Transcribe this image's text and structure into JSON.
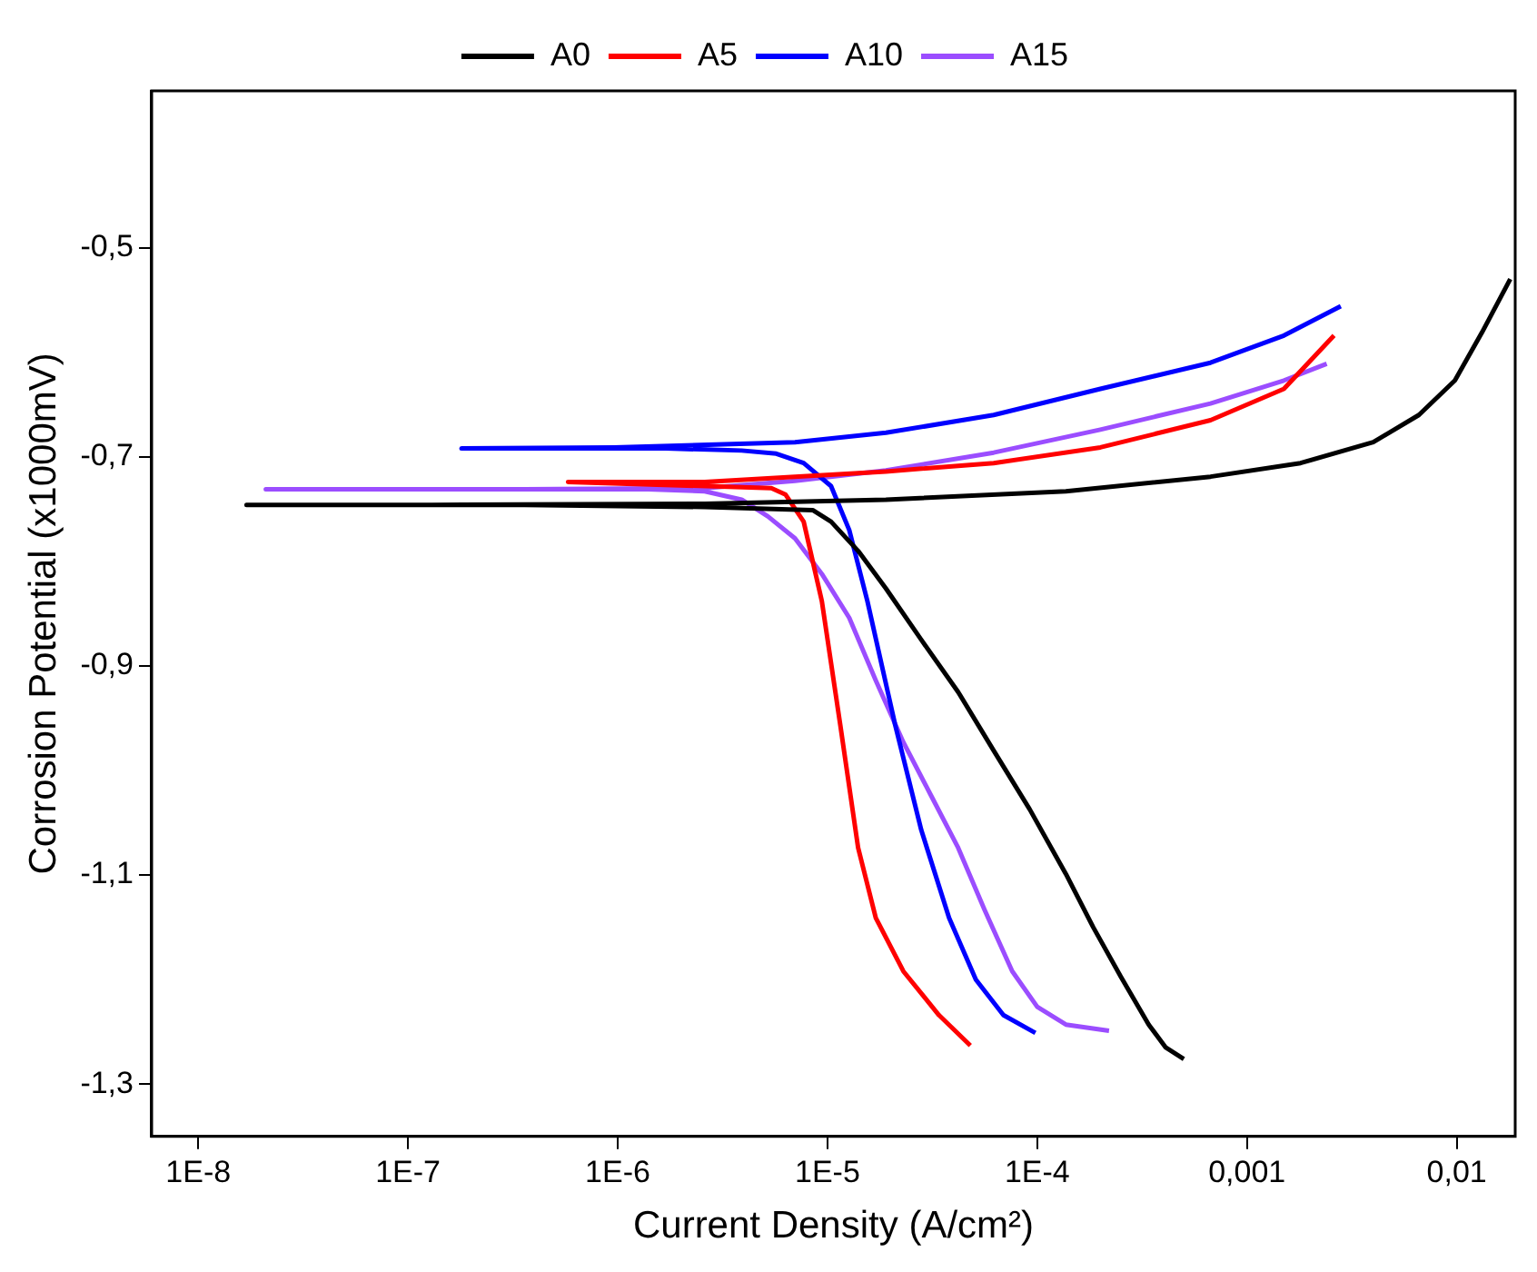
{
  "chart_data": {
    "type": "line",
    "xlabel": "Current Density (A/cm²)",
    "ylabel": "Corrosion Potential (x1000mV)",
    "log": "x",
    "grid": false,
    "legend": "top",
    "marker": "none",
    "line_style": "solid",
    "xlim": [
      6e-09,
      0.019
    ],
    "xticks": [
      {
        "value": 1e-08,
        "label": "1E-8"
      },
      {
        "value": 1e-07,
        "label": "1E-7"
      },
      {
        "value": 1e-06,
        "label": "1E-6"
      },
      {
        "value": 1e-05,
        "label": "1E-5"
      },
      {
        "value": 0.0001,
        "label": "1E-4"
      },
      {
        "value": 0.001,
        "label": "0,001"
      },
      {
        "value": 0.01,
        "label": "0,01"
      }
    ],
    "ylim": [
      -1.35,
      -0.35
    ],
    "yticks": [
      {
        "value": -1.3,
        "label": "-1,3"
      },
      {
        "value": -1.1,
        "label": "-1,1"
      },
      {
        "value": -0.9,
        "label": "-0,9"
      },
      {
        "value": -0.7,
        "label": "-0,7"
      },
      {
        "value": -0.5,
        "label": "-0,5"
      }
    ],
    "series": [
      {
        "name": "A0",
        "color": "#000000",
        "x": [
          0.0005,
          0.00041,
          0.00034,
          0.00025,
          0.000185,
          0.000137,
          9.2e-05,
          6.2e-05,
          4.2e-05,
          2.8e-05,
          1.9e-05,
          1.4e-05,
          1.04e-05,
          8.5e-06,
          2.6e-06,
          3.6e-07,
          4.9e-08,
          1.7e-08,
          1.3e-07,
          2.6e-06,
          1.9e-05,
          0.000137,
          0.00067,
          0.0018,
          0.004,
          0.0066,
          0.0098,
          0.0132,
          0.018
        ],
        "values": [
          -1.276,
          -1.265,
          -1.243,
          -1.197,
          -1.15,
          -1.099,
          -1.037,
          -0.981,
          -0.925,
          -0.875,
          -0.826,
          -0.79,
          -0.762,
          -0.751,
          -0.748,
          -0.746,
          -0.746,
          -0.746,
          -0.746,
          -0.745,
          -0.741,
          -0.733,
          -0.719,
          -0.706,
          -0.686,
          -0.66,
          -0.627,
          -0.581,
          -0.53
        ]
      },
      {
        "name": "A5",
        "color": "#ff0000",
        "x": [
          4.8e-05,
          3.4e-05,
          2.3e-05,
          1.7e-05,
          1.4e-05,
          1.15e-05,
          9.4e-06,
          7.7e-06,
          6.3e-06,
          5.4e-06,
          5.8e-07,
          2.6e-06,
          7e-06,
          1.9e-05,
          6.2e-05,
          0.0002,
          0.00067,
          0.0015,
          0.0026
        ],
        "values": [
          -1.263,
          -1.234,
          -1.192,
          -1.141,
          -1.074,
          -0.956,
          -0.838,
          -0.762,
          -0.736,
          -0.73,
          -0.724,
          -0.724,
          -0.719,
          -0.714,
          -0.706,
          -0.691,
          -0.665,
          -0.635,
          -0.584
        ]
      },
      {
        "name": "A10",
        "color": "#0000ff",
        "x": [
          9.8e-05,
          6.9e-05,
          5.1e-05,
          3.8e-05,
          2.8e-05,
          2.1e-05,
          1.55e-05,
          1.27e-05,
          1.04e-05,
          7.7e-06,
          5.7e-06,
          3.9e-06,
          1.7e-06,
          3.6e-07,
          1.8e-07,
          9.6e-07,
          7e-06,
          1.9e-05,
          6.2e-05,
          0.0002,
          0.00067,
          0.0015,
          0.0028
        ],
        "values": [
          -1.251,
          -1.234,
          -1.2,
          -1.141,
          -1.057,
          -0.956,
          -0.838,
          -0.77,
          -0.728,
          -0.706,
          -0.697,
          -0.694,
          -0.692,
          -0.692,
          -0.692,
          -0.691,
          -0.686,
          -0.677,
          -0.66,
          -0.635,
          -0.61,
          -0.584,
          -0.556
        ]
      },
      {
        "name": "A15",
        "color": "#9b4dff",
        "x": [
          0.00022,
          0.000137,
          0.0001,
          7.6e-05,
          5.6e-05,
          4.2e-05,
          3.1e-05,
          2.3e-05,
          1.7e-05,
          1.27e-05,
          9.4e-06,
          7e-06,
          5.2e-06,
          3.9e-06,
          2.6e-06,
          1.4e-06,
          3.6e-07,
          4.9e-08,
          2.1e-08,
          3.6e-07,
          2.6e-06,
          7e-06,
          1.9e-05,
          6.2e-05,
          0.0002,
          0.00067,
          0.0015,
          0.0024
        ],
        "values": [
          -1.249,
          -1.243,
          -1.226,
          -1.192,
          -1.133,
          -1.074,
          -1.023,
          -0.973,
          -0.914,
          -0.854,
          -0.812,
          -0.778,
          -0.757,
          -0.741,
          -0.733,
          -0.731,
          -0.731,
          -0.731,
          -0.731,
          -0.731,
          -0.73,
          -0.723,
          -0.713,
          -0.696,
          -0.674,
          -0.649,
          -0.627,
          -0.611
        ]
      }
    ]
  }
}
